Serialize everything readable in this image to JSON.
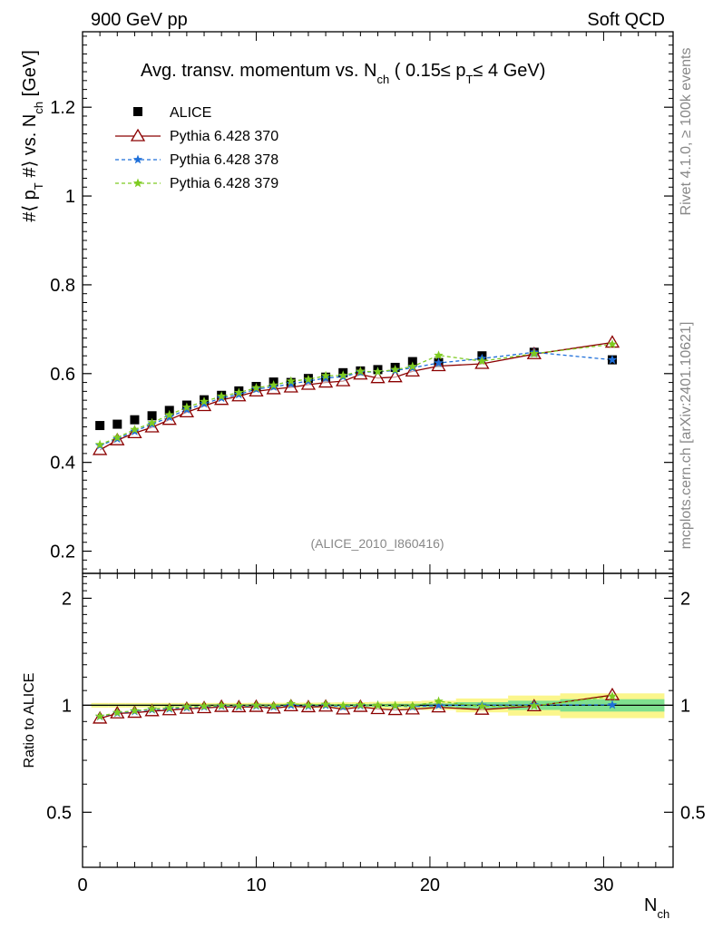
{
  "header": {
    "left": "900 GeV pp",
    "right": "Soft QCD"
  },
  "side_labels": {
    "rivet": "Rivet 4.1.0, ≥ 100k events",
    "mcplots": "mcplots.cern.ch [arXiv:2401.10621]"
  },
  "chart_data": [
    {
      "panel": "main",
      "type": "scatter",
      "title": {
        "prefix": "Avg. transv. momentum vs. N",
        "prefix_sub": "ch",
        "mid": " ( 0.15≤ p",
        "mid_sub": "T",
        "suffix": "≤ 4 GeV)"
      },
      "ylabel": {
        "a": "#⟨ p",
        "a_sub": "T",
        "b": " #⟩ vs. N",
        "b_sub": "ch",
        "c": " [GeV]"
      },
      "watermark": "(ALICE_2010_I860416)",
      "xlim": [
        0,
        34
      ],
      "ylim": [
        0.15,
        1.37
      ],
      "yticks": [
        0.2,
        0.4,
        0.6,
        0.8,
        1,
        1.2
      ],
      "ytick_labels": [
        "0.2",
        "0.4",
        "0.6",
        "0.8",
        "1",
        "1.2"
      ],
      "legend": [
        "ALICE",
        "Pythia 6.428 370",
        "Pythia 6.428 378",
        "Pythia 6.428 379"
      ],
      "series": [
        {
          "name": "ALICE",
          "color": "#000000",
          "marker": "square",
          "x": [
            1,
            2,
            3,
            4,
            5,
            6,
            7,
            8,
            9,
            10,
            11,
            12,
            13,
            14,
            15,
            16,
            17,
            18,
            19,
            20.5,
            23,
            26,
            30.5
          ],
          "values": [
            0.483,
            0.486,
            0.496,
            0.505,
            0.517,
            0.529,
            0.541,
            0.551,
            0.561,
            0.571,
            0.581,
            0.58,
            0.589,
            0.592,
            0.602,
            0.606,
            0.609,
            0.614,
            0.627,
            0.625,
            0.64,
            0.648,
            0.631
          ]
        },
        {
          "name": "Pythia 6.428 370",
          "color": "#8b0000",
          "marker": "triangle-open",
          "line": "solid",
          "x": [
            1,
            2,
            3,
            4,
            5,
            6,
            7,
            8,
            9,
            10,
            11,
            12,
            13,
            14,
            15,
            16,
            17,
            18,
            19,
            20.5,
            23,
            26,
            30.5
          ],
          "values": [
            0.428,
            0.45,
            0.466,
            0.479,
            0.496,
            0.513,
            0.527,
            0.541,
            0.549,
            0.56,
            0.565,
            0.569,
            0.575,
            0.58,
            0.583,
            0.598,
            0.59,
            0.592,
            0.605,
            0.617,
            0.622,
            0.644,
            0.67
          ]
        },
        {
          "name": "Pythia 6.428 378",
          "color": "#1e6fd9",
          "marker": "star",
          "line": "dashed",
          "x": [
            1,
            2,
            3,
            4,
            5,
            6,
            7,
            8,
            9,
            10,
            11,
            12,
            13,
            14,
            15,
            16,
            17,
            18,
            19,
            20.5,
            23,
            26,
            30.5
          ],
          "values": [
            0.438,
            0.453,
            0.47,
            0.486,
            0.502,
            0.519,
            0.532,
            0.545,
            0.553,
            0.565,
            0.57,
            0.577,
            0.583,
            0.59,
            0.593,
            0.603,
            0.604,
            0.607,
            0.613,
            0.624,
            0.634,
            0.648,
            0.631
          ]
        },
        {
          "name": "Pythia 6.428 379",
          "color": "#7ecb20",
          "marker": "star",
          "line": "dashed",
          "x": [
            1,
            2,
            3,
            4,
            5,
            6,
            7,
            8,
            9,
            10,
            11,
            12,
            13,
            14,
            15,
            16,
            17,
            18,
            19,
            20.5,
            23,
            26,
            30.5
          ],
          "values": [
            0.44,
            0.456,
            0.474,
            0.489,
            0.507,
            0.524,
            0.537,
            0.549,
            0.557,
            0.568,
            0.574,
            0.583,
            0.587,
            0.595,
            0.596,
            0.605,
            0.604,
            0.609,
            0.616,
            0.641,
            0.628,
            0.645,
            0.666
          ]
        }
      ]
    },
    {
      "panel": "ratio",
      "type": "scatter",
      "ylabel": "Ratio to ALICE",
      "xlabel": "N",
      "xlabel_sub": "ch",
      "xlim": [
        0,
        34
      ],
      "ylim": [
        0.35,
        2.35
      ],
      "yscale": "log",
      "yticks": [
        0.5,
        1,
        2
      ],
      "ytick_labels": [
        "0.5",
        "1",
        "2"
      ],
      "xticks": [
        0,
        10,
        20,
        30
      ],
      "xtick_labels": [
        "0",
        "10",
        "20",
        "30"
      ],
      "bands": {
        "x_edges": [
          0.5,
          1.5,
          2.5,
          3.5,
          4.5,
          5.5,
          6.5,
          7.5,
          8.5,
          9.5,
          10.5,
          11.5,
          12.5,
          13.5,
          14.5,
          15.5,
          16.5,
          17.5,
          18.5,
          19.5,
          21.5,
          24.5,
          27.5,
          33.5
        ],
        "stat": [
          0.005,
          0.005,
          0.005,
          0.005,
          0.005,
          0.005,
          0.005,
          0.005,
          0.005,
          0.006,
          0.006,
          0.006,
          0.007,
          0.007,
          0.008,
          0.008,
          0.009,
          0.01,
          0.01,
          0.012,
          0.02,
          0.03,
          0.04
        ],
        "total": [
          0.015,
          0.015,
          0.015,
          0.015,
          0.015,
          0.015,
          0.015,
          0.015,
          0.015,
          0.016,
          0.016,
          0.016,
          0.017,
          0.018,
          0.019,
          0.02,
          0.022,
          0.024,
          0.026,
          0.03,
          0.045,
          0.065,
          0.08
        ],
        "stat_color": "#7fe08f",
        "total_color": "#fbf68c"
      },
      "series": [
        {
          "name": "Pythia 6.428 370",
          "color": "#8b0000",
          "x": [
            1,
            2,
            3,
            4,
            5,
            6,
            7,
            8,
            9,
            10,
            11,
            12,
            13,
            14,
            15,
            16,
            17,
            18,
            19,
            20.5,
            23,
            26,
            30.5
          ],
          "values": [
            0.918,
            0.949,
            0.953,
            0.963,
            0.969,
            0.978,
            0.982,
            0.99,
            0.988,
            0.99,
            0.98,
            0.994,
            0.988,
            0.992,
            0.974,
            0.99,
            0.976,
            0.97,
            0.974,
            0.987,
            0.972,
            0.994,
            1.068
          ]
        },
        {
          "name": "Pythia 6.428 378",
          "color": "#1e6fd9",
          "x": [
            1,
            2,
            3,
            4,
            5,
            6,
            7,
            8,
            9,
            10,
            11,
            12,
            13,
            14,
            15,
            16,
            17,
            18,
            19,
            20.5,
            23,
            26,
            30.5
          ],
          "values": [
            0.93,
            0.951,
            0.961,
            0.972,
            0.978,
            0.985,
            0.99,
            0.995,
            0.992,
            0.996,
            0.99,
            1.0,
            0.995,
            1.0,
            0.99,
            0.998,
            0.999,
            0.996,
            0.99,
            1.0,
            1.0,
            1.002,
            1.002
          ]
        },
        {
          "name": "Pythia 6.428 379",
          "color": "#7ecb20",
          "x": [
            1,
            2,
            3,
            4,
            5,
            6,
            7,
            8,
            9,
            10,
            11,
            12,
            13,
            14,
            15,
            16,
            17,
            18,
            19,
            20.5,
            23,
            26,
            30.5
          ],
          "values": [
            0.931,
            0.954,
            0.965,
            0.976,
            0.983,
            0.99,
            0.994,
            0.999,
            0.997,
            1.0,
            0.996,
            1.01,
            1.0,
            1.006,
            0.998,
            1.002,
            0.999,
            0.998,
            0.995,
            1.026,
            0.993,
            0.996,
            1.06
          ]
        }
      ]
    }
  ]
}
